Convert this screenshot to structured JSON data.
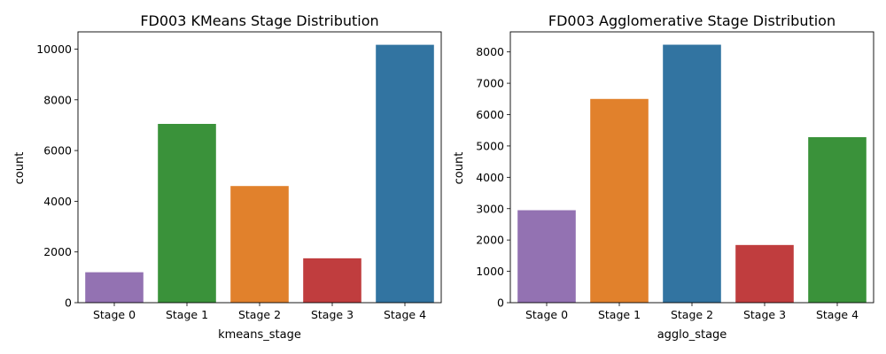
{
  "chart_data": [
    {
      "type": "bar",
      "title": "FD003 KMeans Stage Distribution",
      "xlabel": "kmeans_stage",
      "ylabel": "count",
      "categories": [
        "Stage 0",
        "Stage 1",
        "Stage 2",
        "Stage 3",
        "Stage 4"
      ],
      "values": [
        1200,
        7050,
        4600,
        1750,
        10170
      ],
      "colors": [
        "#9372b2",
        "#3a923a",
        "#e1812c",
        "#c03d3e",
        "#3274a1"
      ],
      "ylim": [
        0,
        10680
      ],
      "yticks": [
        0,
        2000,
        4000,
        6000,
        8000,
        10000
      ],
      "ytick_labels": [
        "0",
        "2000",
        "4000",
        "6000",
        "8000",
        "10000"
      ],
      "grid": false,
      "legend": false
    },
    {
      "type": "bar",
      "title": "FD003 Agglomerative Stage Distribution",
      "xlabel": "agglo_stage",
      "ylabel": "count",
      "categories": [
        "Stage 0",
        "Stage 1",
        "Stage 2",
        "Stage 3",
        "Stage 4"
      ],
      "values": [
        2950,
        6500,
        8230,
        1840,
        5280
      ],
      "colors": [
        "#9372b2",
        "#e1812c",
        "#3274a1",
        "#c03d3e",
        "#3a923a"
      ],
      "ylim": [
        0,
        8640
      ],
      "yticks": [
        0,
        1000,
        2000,
        3000,
        4000,
        5000,
        6000,
        7000,
        8000
      ],
      "ytick_labels": [
        "0",
        "1000",
        "2000",
        "3000",
        "4000",
        "5000",
        "6000",
        "7000",
        "8000"
      ],
      "grid": false,
      "legend": false
    }
  ]
}
